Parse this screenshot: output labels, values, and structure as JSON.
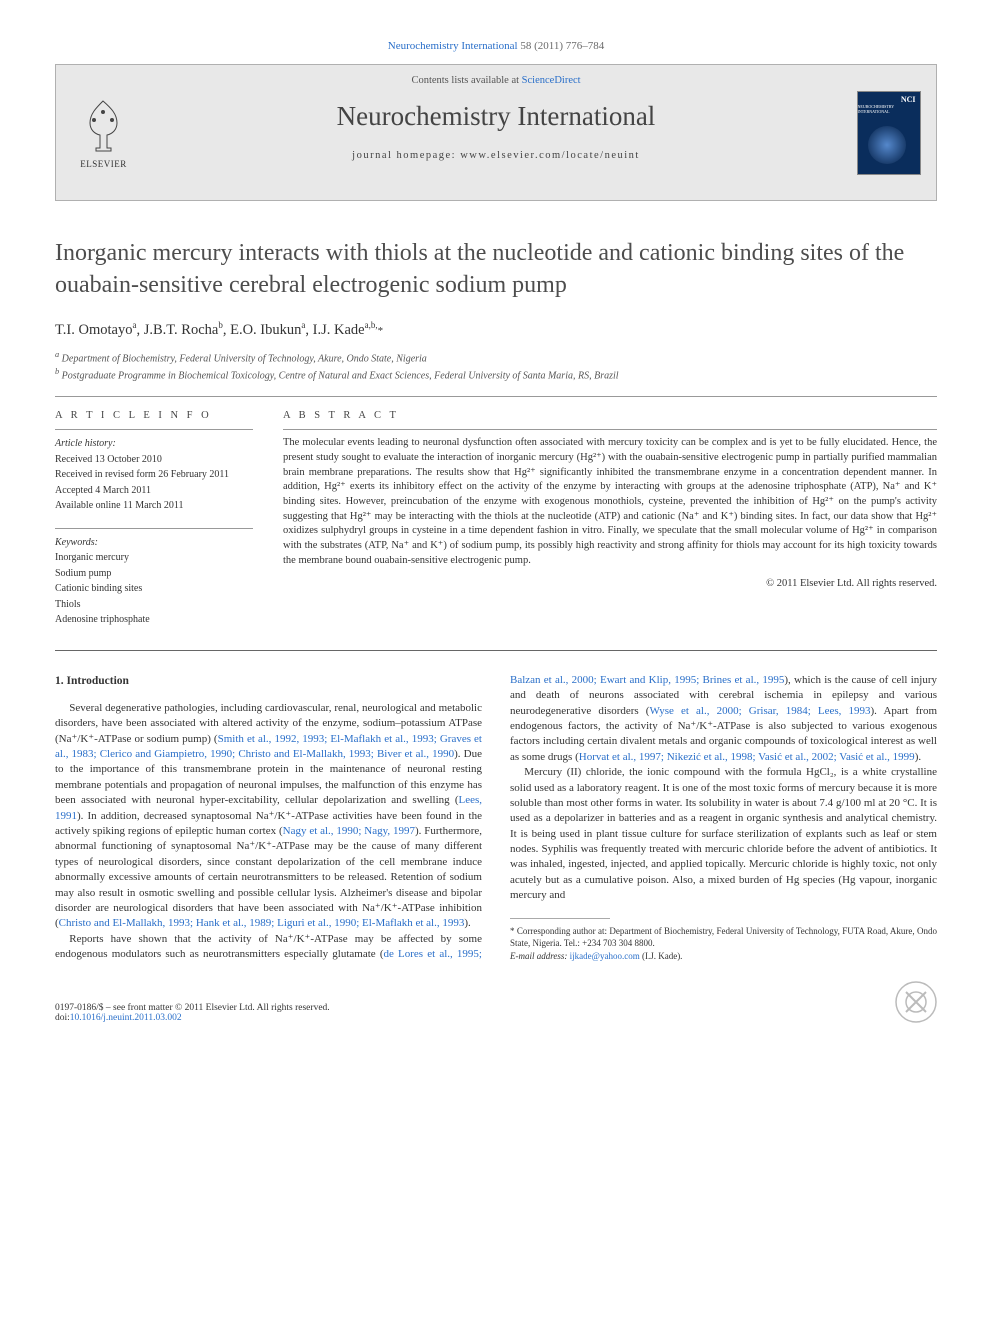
{
  "header": {
    "citation_prefix": "Neurochemistry International",
    "citation_suffix": " 58 (2011) 776–784",
    "contents_prefix": "Contents lists available at ",
    "contents_link": "ScienceDirect",
    "journal_name": "Neurochemistry International",
    "homepage_prefix": "journal homepage: ",
    "homepage_url": "www.elsevier.com/locate/neuint",
    "publisher": "ELSEVIER",
    "cover_label": "NCI",
    "cover_sub": "NEUROCHEMISTRY INTERNATIONAL"
  },
  "title": "Inorganic mercury interacts with thiols at the nucleotide and cationic binding sites of the ouabain-sensitive cerebral electrogenic sodium pump",
  "authors_html": "T.I. Omotayo<sup>a</sup>, J.B.T. Rocha<sup>b</sup>, E.O. Ibukun<sup>a</sup>, I.J. Kade<sup>a,b,</sup><span class='corr'>*</span>",
  "affiliations": {
    "a": "Department of Biochemistry, Federal University of Technology, Akure, Ondo State, Nigeria",
    "b": "Postgraduate Programme in Biochemical Toxicology, Centre of Natural and Exact Sciences, Federal University of Santa Maria, RS, Brazil"
  },
  "article_info": {
    "heading": "A R T I C L E   I N F O",
    "history_label": "Article history:",
    "history": [
      "Received 13 October 2010",
      "Received in revised form 26 February 2011",
      "Accepted 4 March 2011",
      "Available online 11 March 2011"
    ],
    "keywords_label": "Keywords:",
    "keywords": [
      "Inorganic mercury",
      "Sodium pump",
      "Cationic binding sites",
      "Thiols",
      "Adenosine triphosphate"
    ]
  },
  "abstract": {
    "heading": "A B S T R A C T",
    "text": "The molecular events leading to neuronal dysfunction often associated with mercury toxicity can be complex and is yet to be fully elucidated. Hence, the present study sought to evaluate the interaction of inorganic mercury (Hg²⁺) with the ouabain-sensitive electrogenic pump in partially purified mammalian brain membrane preparations. The results show that Hg²⁺ significantly inhibited the transmembrane enzyme in a concentration dependent manner. In addition, Hg²⁺ exerts its inhibitory effect on the activity of the enzyme by interacting with groups at the adenosine triphosphate (ATP), Na⁺ and K⁺ binding sites. However, preincubation of the enzyme with exogenous monothiols, cysteine, prevented the inhibition of Hg²⁺ on the pump's activity suggesting that Hg²⁺ may be interacting with the thiols at the nucleotide (ATP) and cationic (Na⁺ and K⁺) binding sites. In fact, our data show that Hg²⁺ oxidizes sulphydryl groups in cysteine in a time dependent fashion in vitro. Finally, we speculate that the small molecular volume of Hg²⁺ in comparison with the substrates (ATP, Na⁺ and K⁺) of sodium pump, its possibly high reactivity and strong affinity for thiols may account for its high toxicity towards the membrane bound ouabain-sensitive electrogenic pump.",
    "copyright": "© 2011 Elsevier Ltd. All rights reserved."
  },
  "body": {
    "section_heading": "1. Introduction",
    "col1_p1_a": "Several degenerative pathologies, including cardiovascular, renal, neurological and metabolic disorders, have been associated with altered activity of the enzyme, sodium–potassium ATPase (Na⁺/K⁺-ATPase or sodium pump) (",
    "cite1": "Smith et al., 1992, 1993; El-Maflakh et al., 1993; Graves et al., 1983; Clerico and Giampietro, 1990; Christo and El-Mallakh, 1993; Biver et al., 1990",
    "col1_p1_b": "). Due to the importance of this transmembrane protein in the maintenance of neuronal resting membrane potentials and propagation of neuronal impulses, the malfunction of this enzyme has been associated with neuronal hyper-excitability, cellular depolarization and swelling (",
    "cite2": "Lees, 1991",
    "col1_p1_c": "). In addition, decreased synaptosomal Na⁺/K⁺-ATPase activities have been found in the actively spiking regions of epileptic human cortex (",
    "cite3": "Nagy et al., 1990; Nagy, 1997",
    "col1_p1_d": "). Furthermore, abnormal functioning of synaptosomal Na⁺/K⁺-ATPase may be the cause of many different types of neurological disorders, since constant depolarization of the cell membrane induce abnormally excessive amounts of certain neurotransmitters to be released. Retention of sodium may also result in osmotic swelling and possible cellular lysis. Alzheimer's disease and bipolar",
    "col2_p1_a": "disorder are neurological disorders that have been associated with Na⁺/K⁺-ATPase inhibition (",
    "cite4": "Christo and El-Mallakh, 1993; Hank et al., 1989; Liguri et al., 1990; El-Maflakh et al., 1993",
    "col2_p1_b": ").",
    "col2_p2_a": "Reports have shown that the activity of Na⁺/K⁺-ATPase may be affected by some endogenous modulators such as neurotransmitters especially glutamate (",
    "cite5": "de Lores et al., 1995; Balzan et al., 2000; Ewart and Klip, 1995; Brines et al., 1995",
    "col2_p2_b": "), which is the cause of cell injury and death of neurons associated with cerebral ischemia in epilepsy and various neurodegenerative disorders (",
    "cite6": "Wyse et al., 2000; Grisar, 1984; Lees, 1993",
    "col2_p2_c": "). Apart from endogenous factors, the activity of Na⁺/K⁺-ATPase is also subjected to various exogenous factors including certain divalent metals and organic compounds of toxicological interest as well as some drugs (",
    "cite7": "Horvat et al., 1997; Nikezić et al., 1998; Vasić et al., 2002; Vasić et al., 1999",
    "col2_p2_d": ").",
    "col2_p3": "Mercury (II) chloride, the ionic compound with the formula HgCl₂, is a white crystalline solid used as a laboratory reagent. It is one of the most toxic forms of mercury because it is more soluble than most other forms in water. Its solubility in water is about 7.4 g/100 ml at 20 °C. It is used as a depolarizer in batteries and as a reagent in organic synthesis and analytical chemistry. It is being used in plant tissue culture for surface sterilization of explants such as leaf or stem nodes. Syphilis was frequently treated with mercuric chloride before the advent of antibiotics. It was inhaled, ingested, injected, and applied topically. Mercuric chloride is highly toxic, not only acutely but as a cumulative poison. Also, a mixed burden of Hg species (Hg vapour, inorganic mercury and"
  },
  "footnote": {
    "corr": "* Corresponding author at: Department of Biochemistry, Federal University of Technology, FUTA Road, Akure, Ondo State, Nigeria. Tel.: +234 703 304 8800.",
    "email_label": "E-mail address: ",
    "email": "ijkade@yahoo.com",
    "email_after": " (I.J. Kade)."
  },
  "footer": {
    "line1_a": "0197-0186/$ – see front matter ",
    "line1_b": "© 2011 Elsevier Ltd. All rights reserved.",
    "line2_a": "doi:",
    "doi": "10.1016/j.neuint.2011.03.002"
  },
  "colors": {
    "link": "#2a6fc9",
    "text": "#333333",
    "masthead_bg": "#e8e8e8",
    "cover_bg": "#0a2d5c"
  }
}
